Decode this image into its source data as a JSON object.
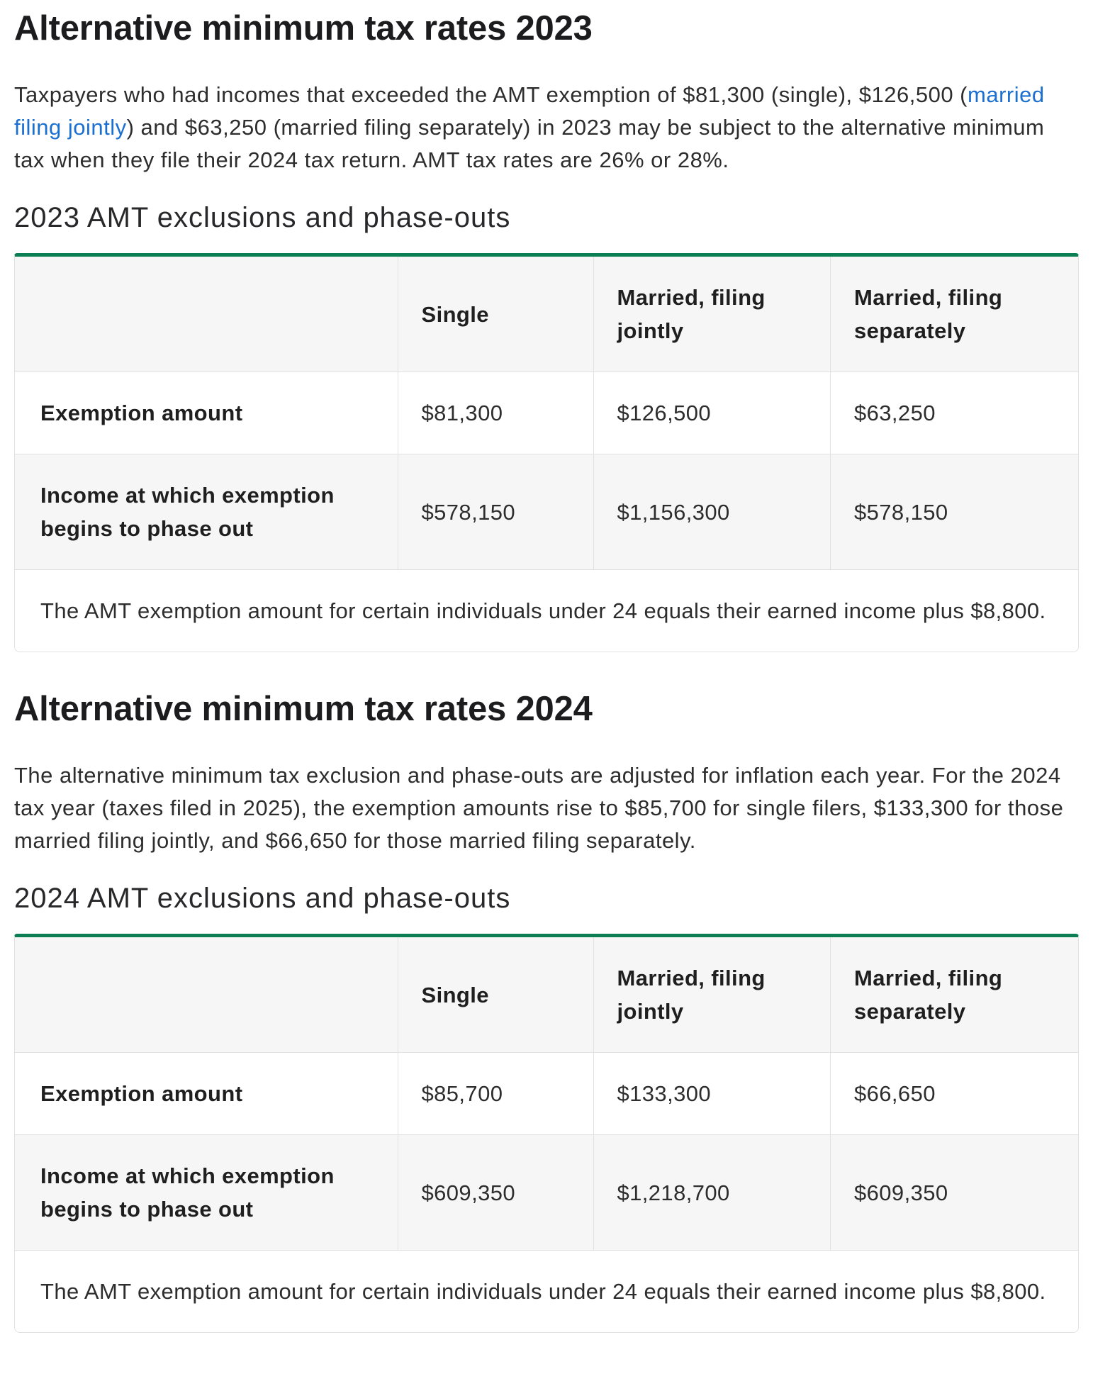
{
  "theme": {
    "accent_green": "#0b7e53",
    "link_blue": "#1a6fd0",
    "table_header_bg": "#f6f6f6",
    "table_border_gray": "#e1e1e1",
    "heading_text_color": "#1c1c1e",
    "body_text_color": "#2d2d2d"
  },
  "sections": {
    "s2023": {
      "title": "Alternative minimum tax rates 2023",
      "intro_before_link": "Taxpayers who had incomes that exceeded the AMT exemption of $81,300 (single), $126,500 (",
      "intro_link_text": "married filing jointly",
      "intro_after_link": ") and $63,250 (married filing separately) in 2023 may be subject to the alternative minimum tax when they file their 2024 tax return. AMT tax rates are 26% or 28%.",
      "table_title": "2023 AMT exclusions and phase-outs",
      "table": {
        "columns": [
          "",
          "Single",
          "Married, filing jointly",
          "Married, filing separately"
        ],
        "rows": [
          {
            "label": "Exemption amount",
            "values": [
              "$81,300",
              "$126,500",
              "$63,250"
            ]
          },
          {
            "label": "Income at which exemption begins to phase out",
            "values": [
              "$578,150",
              "$1,156,300",
              "$578,150"
            ]
          }
        ],
        "footnote": "The AMT exemption amount for certain individuals under 24 equals their earned income plus $8,800."
      }
    },
    "s2024": {
      "title": "Alternative minimum tax rates 2024",
      "intro_text": "The alternative minimum tax exclusion and phase-outs are adjusted for inflation each year. For the 2024 tax year (taxes filed in 2025), the exemption amounts rise to $85,700 for single filers, $133,300 for those married filing jointly, and $66,650 for those married filing separately.",
      "table_title": "2024 AMT exclusions and phase-outs",
      "table": {
        "columns": [
          "",
          "Single",
          "Married, filing jointly",
          "Married, filing separately"
        ],
        "rows": [
          {
            "label": "Exemption amount",
            "values": [
              "$85,700",
              "$133,300",
              "$66,650"
            ]
          },
          {
            "label": "Income at which exemption begins to phase out",
            "values": [
              "$609,350",
              "$1,218,700",
              "$609,350"
            ]
          }
        ],
        "footnote": "The AMT exemption amount for certain individuals under 24 equals their earned income plus $8,800."
      }
    }
  }
}
